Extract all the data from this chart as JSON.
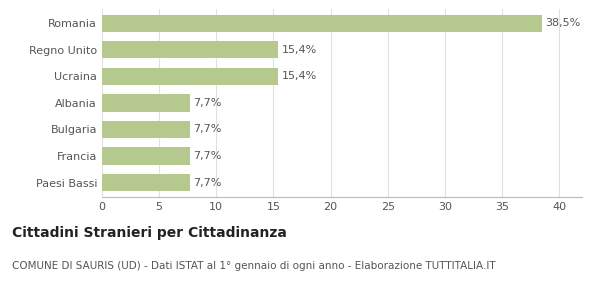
{
  "categories": [
    "Paesi Bassi",
    "Francia",
    "Bulgaria",
    "Albania",
    "Ucraina",
    "Regno Unito",
    "Romania"
  ],
  "values": [
    7.7,
    7.7,
    7.7,
    7.7,
    15.4,
    15.4,
    38.5
  ],
  "labels": [
    "7,7%",
    "7,7%",
    "7,7%",
    "7,7%",
    "15,4%",
    "15,4%",
    "38,5%"
  ],
  "bar_color": "#b5c98e",
  "background_color": "#ffffff",
  "title": "Cittadini Stranieri per Cittadinanza",
  "subtitle": "COMUNE DI SAURIS (UD) - Dati ISTAT al 1° gennaio di ogni anno - Elaborazione TUTTITALIA.IT",
  "xlim": [
    0,
    42
  ],
  "xticks": [
    0,
    5,
    10,
    15,
    20,
    25,
    30,
    35,
    40
  ],
  "title_fontsize": 10,
  "subtitle_fontsize": 7.5,
  "label_fontsize": 8,
  "tick_fontsize": 8,
  "bar_height": 0.65,
  "grid_color": "#e0e0e0",
  "text_color": "#555555",
  "axis_color": "#bbbbbb",
  "title_color": "#222222"
}
